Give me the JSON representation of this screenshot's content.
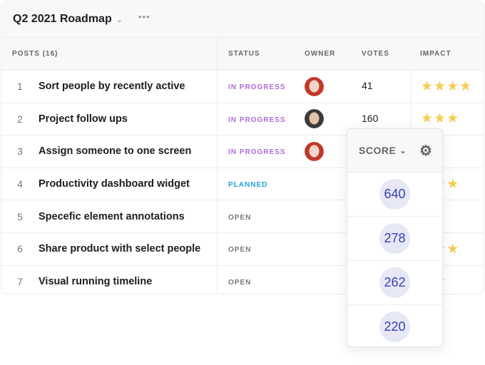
{
  "title": "Q2 2021 Roadmap",
  "columns": {
    "posts": "POSTS (16)",
    "status": "STATUS",
    "owner": "OWNER",
    "votes": "VOTES",
    "impact": "IMPACT"
  },
  "colors": {
    "in_progress": "#b06ad8",
    "planned": "#1fa0dd",
    "open": "#777777",
    "star": "#f7cb55",
    "score": "#3a3fb5"
  },
  "rows": [
    {
      "n": "1",
      "name": "Sort people by recently active",
      "status": "IN PROGRESS",
      "owner": "woman-red-hair",
      "votes": "41",
      "impact": 4
    },
    {
      "n": "2",
      "name": "Project follow ups",
      "status": "IN PROGRESS",
      "owner": "man-beard",
      "votes": "160",
      "impact": 3
    },
    {
      "n": "3",
      "name": "Assign someone to one screen",
      "status": "IN PROGRESS",
      "owner": "woman-red-hair",
      "votes": "",
      "impact": 0
    },
    {
      "n": "4",
      "name": "Productivity dashboard widget",
      "status": "PLANNED",
      "owner": "",
      "votes": "",
      "impact": 3
    },
    {
      "n": "5",
      "name": "Specefic element annotations",
      "status": "OPEN",
      "owner": "",
      "votes": "",
      "impact": 0
    },
    {
      "n": "6",
      "name": "Share product with select people",
      "status": "OPEN",
      "owner": "",
      "votes": "",
      "impact": 3
    },
    {
      "n": "7",
      "name": "Visual running timeline",
      "status": "OPEN",
      "owner": "",
      "votes": "",
      "impact": 2
    }
  ],
  "score_panel": {
    "label": "SCORE",
    "scores": [
      "640",
      "278",
      "262",
      "220"
    ]
  }
}
